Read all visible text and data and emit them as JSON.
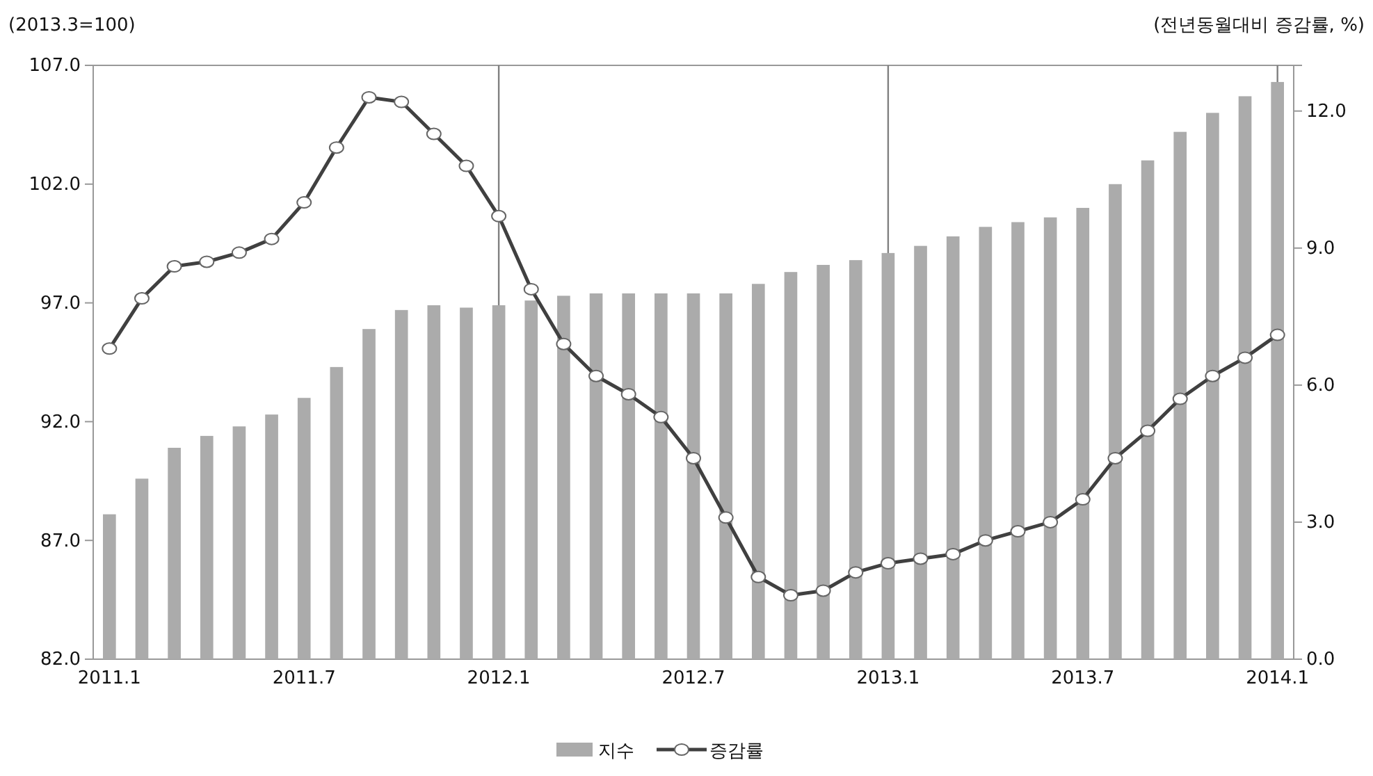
{
  "chart_data": {
    "type": "bar",
    "ylabel": "(2013.3=100)",
    "y2label": "(전년동월대비 증감률, %)",
    "categories": [
      "2011.1",
      null,
      null,
      null,
      null,
      null,
      "2011.7",
      null,
      null,
      null,
      null,
      null,
      "2012.1",
      null,
      null,
      null,
      null,
      null,
      "2012.7",
      null,
      null,
      null,
      null,
      null,
      "2013.1",
      null,
      null,
      null,
      null,
      null,
      "2013.7",
      null,
      null,
      null,
      null,
      null,
      "2014.1"
    ],
    "series": [
      {
        "name": "지수",
        "color": "#ababab",
        "values": [
          88.1,
          89.6,
          90.9,
          91.4,
          91.8,
          92.3,
          93.0,
          94.3,
          95.9,
          96.7,
          96.9,
          96.8,
          96.9,
          97.1,
          97.3,
          97.4,
          97.4,
          97.4,
          97.4,
          97.4,
          97.8,
          98.3,
          98.6,
          98.8,
          99.1,
          99.4,
          99.8,
          100.2,
          100.4,
          100.6,
          101.0,
          102.0,
          103.0,
          104.2,
          105.0,
          105.7,
          106.3
        ]
      },
      {
        "name": "증감률",
        "type": "line",
        "axis": "y2",
        "color": "#404040",
        "marker": "circle",
        "values": [
          6.8,
          7.9,
          8.6,
          8.7,
          8.9,
          9.2,
          10.0,
          11.2,
          12.3,
          12.2,
          11.5,
          10.8,
          9.7,
          8.1,
          6.9,
          6.2,
          5.8,
          5.3,
          4.4,
          3.1,
          1.8,
          1.4,
          1.5,
          1.9,
          2.1,
          2.2,
          2.3,
          2.6,
          2.8,
          3.0,
          3.5,
          4.4,
          5.0,
          5.7,
          6.2,
          6.6,
          7.1
        ]
      }
    ],
    "ylim": [
      82,
      107
    ],
    "yticks": [
      {
        "value": 82,
        "label": "82.0"
      },
      {
        "value": 87,
        "label": "87.0"
      },
      {
        "value": 92,
        "label": "92.0"
      },
      {
        "value": 97,
        "label": "97.0"
      },
      {
        "value": 102,
        "label": "102.0"
      },
      {
        "value": 107,
        "label": "107.0"
      }
    ],
    "y2lim": [
      0,
      13
    ],
    "y2ticks": [
      {
        "value": 0,
        "label": "0.0"
      },
      {
        "value": 3,
        "label": "3.0"
      },
      {
        "value": 6,
        "label": "6.0"
      },
      {
        "value": 9,
        "label": "9.0"
      },
      {
        "value": 12,
        "label": "12.0"
      }
    ],
    "ref_lines": [
      {
        "axis": "x",
        "value": "2012.1",
        "color": "#808080"
      },
      {
        "axis": "x",
        "value": "2013.1",
        "color": "#808080"
      },
      {
        "axis": "x",
        "value": "2014.1",
        "color": "#808080"
      }
    ],
    "grid": false,
    "legend": "bottom"
  }
}
